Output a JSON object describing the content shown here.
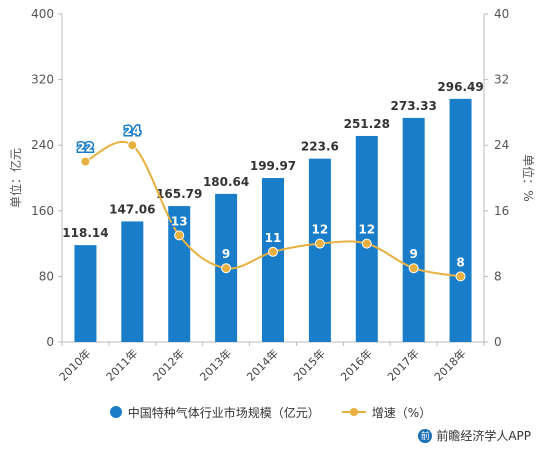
{
  "chart_data": {
    "type": "bar",
    "categories": [
      "2010年",
      "2011年",
      "2012年",
      "2013年",
      "2014年",
      "2015年",
      "2016年",
      "2017年",
      "2018年"
    ],
    "series": [
      {
        "name": "中国特种气体行业市场规模（亿元）",
        "type": "bar",
        "axis": "left",
        "values": [
          118.14,
          147.06,
          165.79,
          180.64,
          199.97,
          223.6,
          251.28,
          273.33,
          296.49
        ],
        "labels": [
          "118.14",
          "147.06",
          "165.79",
          "180.64",
          "199.97",
          "223.6",
          "251.28",
          "273.33",
          "296.49"
        ],
        "color": "#1a7dc9"
      },
      {
        "name": "增速（%）",
        "type": "line",
        "axis": "right",
        "values": [
          22,
          24,
          13,
          9,
          11,
          12,
          12,
          9,
          8
        ],
        "labels": [
          "22",
          "24",
          "13",
          "9",
          "11",
          "12",
          "12",
          "9",
          "8"
        ],
        "color": "#e8b040"
      }
    ],
    "ylabel": "单位：亿元",
    "y2label": "单位：%",
    "ylim": [
      0,
      400
    ],
    "y2lim": [
      0,
      40
    ],
    "yticks": [
      "0",
      "80",
      "160",
      "240",
      "320",
      "400"
    ],
    "y2ticks": [
      "0",
      "8",
      "16",
      "24",
      "32",
      "40"
    ],
    "grid": false,
    "legend_position": "bottom"
  },
  "legend": {
    "bar_label": "中国特种气体行业市场规模（亿元）",
    "line_label": "增速（%）"
  },
  "footer": {
    "logo": "前",
    "text": "前瞻经济学人APP"
  }
}
